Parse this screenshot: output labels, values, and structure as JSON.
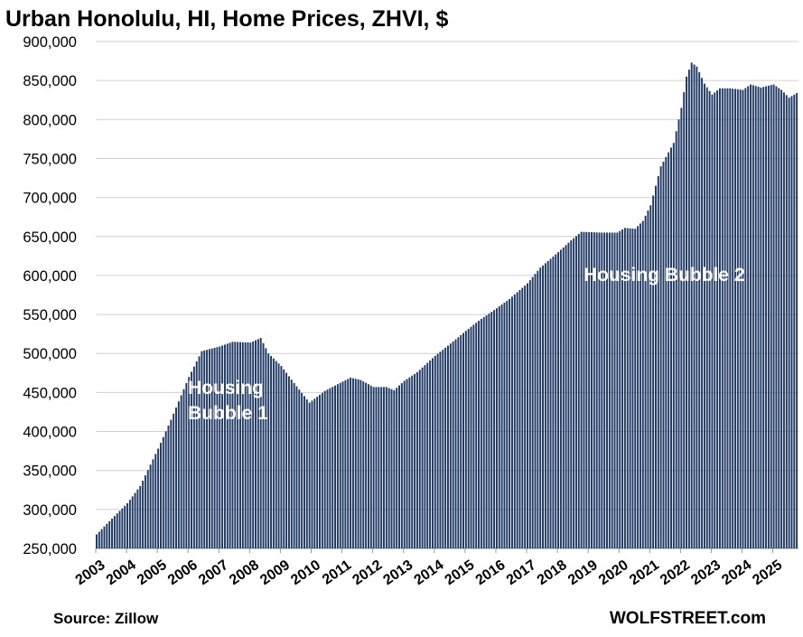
{
  "chart_data": {
    "type": "bar",
    "title": "Urban Honolulu, HI, Home Prices, ZHVI, $",
    "xlabel": "",
    "ylabel": "",
    "ylim": [
      250000,
      900000
    ],
    "yticks": [
      250000,
      300000,
      350000,
      400000,
      450000,
      500000,
      550000,
      600000,
      650000,
      700000,
      750000,
      800000,
      850000,
      900000
    ],
    "ytick_labels": [
      "250,000",
      "300,000",
      "350,000",
      "400,000",
      "450,000",
      "500,000",
      "550,000",
      "600,000",
      "650,000",
      "700,000",
      "750,000",
      "800,000",
      "850,000",
      "900,000"
    ],
    "grid": true,
    "legend": "none",
    "bar_color": "#1f3864",
    "x_start": "2003-01",
    "x_end": "2025-10",
    "year_labels": [
      "2003",
      "2004",
      "2005",
      "2006",
      "2007",
      "2008",
      "2009",
      "2010",
      "2011",
      "2012",
      "2013",
      "2014",
      "2015",
      "2016",
      "2017",
      "2018",
      "2019",
      "2020",
      "2021",
      "2022",
      "2023",
      "2024",
      "2025"
    ],
    "anchors": [
      [
        "2003-01",
        268000
      ],
      [
        "2003-06",
        285000
      ],
      [
        "2004-01",
        308000
      ],
      [
        "2004-06",
        330000
      ],
      [
        "2005-01",
        378000
      ],
      [
        "2005-06",
        415000
      ],
      [
        "2006-01",
        470000
      ],
      [
        "2006-06",
        503000
      ],
      [
        "2007-01",
        509000
      ],
      [
        "2007-06",
        515000
      ],
      [
        "2008-01",
        514000
      ],
      [
        "2008-05",
        520000
      ],
      [
        "2008-08",
        500000
      ],
      [
        "2009-01",
        484000
      ],
      [
        "2009-06",
        462000
      ],
      [
        "2009-12",
        437000
      ],
      [
        "2010-06",
        452000
      ],
      [
        "2011-01",
        464000
      ],
      [
        "2011-04",
        469000
      ],
      [
        "2011-08",
        466000
      ],
      [
        "2012-01",
        457000
      ],
      [
        "2012-06",
        457000
      ],
      [
        "2012-09",
        453000
      ],
      [
        "2013-01",
        465000
      ],
      [
        "2013-06",
        476000
      ],
      [
        "2014-01",
        497000
      ],
      [
        "2014-06",
        510000
      ],
      [
        "2015-01",
        529000
      ],
      [
        "2015-06",
        542000
      ],
      [
        "2016-01",
        558000
      ],
      [
        "2016-06",
        570000
      ],
      [
        "2017-01",
        590000
      ],
      [
        "2017-06",
        610000
      ],
      [
        "2018-01",
        630000
      ],
      [
        "2018-06",
        645000
      ],
      [
        "2018-10",
        656000
      ],
      [
        "2019-06",
        655000
      ],
      [
        "2019-12",
        655000
      ],
      [
        "2020-03",
        661000
      ],
      [
        "2020-07",
        660000
      ],
      [
        "2020-10",
        670000
      ],
      [
        "2021-01",
        690000
      ],
      [
        "2021-05",
        740000
      ],
      [
        "2021-10",
        770000
      ],
      [
        "2022-01",
        815000
      ],
      [
        "2022-03",
        855000
      ],
      [
        "2022-05",
        873000
      ],
      [
        "2022-07",
        868000
      ],
      [
        "2022-10",
        846000
      ],
      [
        "2023-01",
        832000
      ],
      [
        "2023-04",
        840000
      ],
      [
        "2023-08",
        840000
      ],
      [
        "2024-01",
        838000
      ],
      [
        "2024-04",
        845000
      ],
      [
        "2024-08",
        841000
      ],
      [
        "2025-01",
        845000
      ],
      [
        "2025-04",
        838000
      ],
      [
        "2025-07",
        828000
      ],
      [
        "2025-10",
        834000
      ]
    ],
    "annotations": [
      "Housing\nBubble 1",
      "Housing Bubble 2"
    ]
  },
  "footer": {
    "source": "Source: Zillow",
    "brand": "WOLFSTREET.com"
  }
}
